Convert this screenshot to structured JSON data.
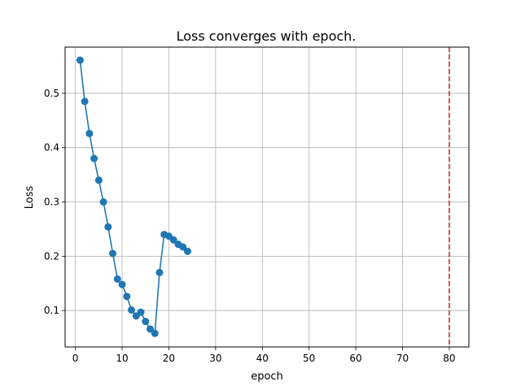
{
  "chart_data": {
    "type": "line",
    "title": "Loss converges with epoch.",
    "xlabel": "epoch",
    "ylabel": "Loss",
    "xlim": [
      -2.2,
      84.2
    ],
    "ylim": [
      0.033,
      0.585
    ],
    "xticks": [
      0,
      10,
      20,
      30,
      40,
      50,
      60,
      70,
      80
    ],
    "yticks": [
      0.1,
      0.2,
      0.3,
      0.4,
      0.5
    ],
    "ytick_labels": [
      "0.1",
      "0.2",
      "0.3",
      "0.4",
      "0.5"
    ],
    "grid": true,
    "series": [
      {
        "color": "#1f77b4",
        "marker": "circle",
        "x": [
          1,
          2,
          3,
          4,
          5,
          6,
          7,
          8,
          9,
          10,
          11,
          12,
          13,
          14,
          15,
          16,
          17,
          18,
          19,
          20,
          21,
          22,
          23,
          24
        ],
        "y": [
          0.561,
          0.485,
          0.426,
          0.38,
          0.34,
          0.3,
          0.254,
          0.205,
          0.158,
          0.148,
          0.126,
          0.101,
          0.09,
          0.097,
          0.08,
          0.066,
          0.058,
          0.17,
          0.24,
          0.237,
          0.23,
          0.222,
          0.217,
          0.209
        ]
      }
    ],
    "vline": {
      "x": 80,
      "color": "#d62728",
      "style": "dashed"
    }
  }
}
